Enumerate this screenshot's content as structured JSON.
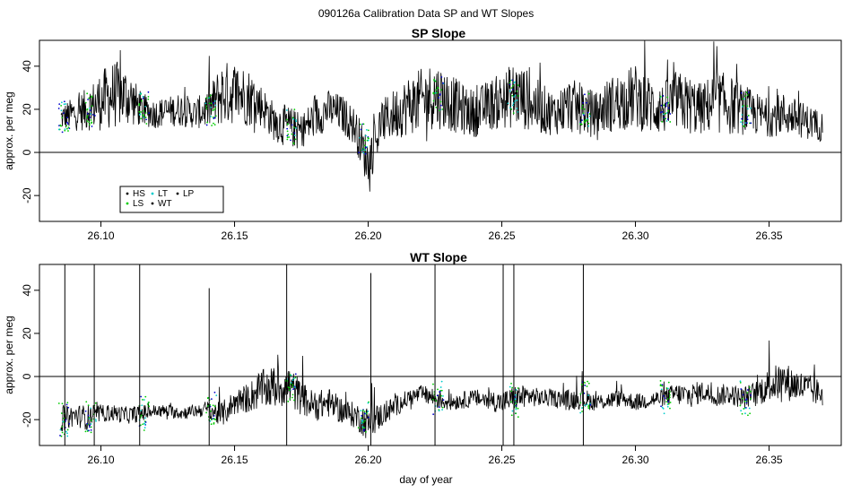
{
  "figure": {
    "title": "090126a   Calibration Data SP and WT Slopes",
    "xlabel": "day of year"
  },
  "chart_data": [
    {
      "type": "line",
      "title": "SP Slope",
      "ylabel": "approx. per meg",
      "xlim": [
        26.077,
        26.377
      ],
      "ylim": [
        -32,
        52
      ],
      "xticks": [
        26.1,
        26.15,
        26.2,
        26.25,
        26.3,
        26.35
      ],
      "xtick_labels": [
        "26.10",
        "26.15",
        "26.20",
        "26.25",
        "26.30",
        "26.35"
      ],
      "yticks": [
        -20,
        0,
        20,
        40
      ],
      "ytick_labels": [
        "-20",
        "0",
        "20",
        "40"
      ],
      "hline": 0,
      "legend": {
        "placement": "bottom-left",
        "entries": [
          {
            "label": "HS",
            "color": "#000000"
          },
          {
            "label": "LT",
            "color": "#00cccc"
          },
          {
            "label": "LP",
            "color": "#000000"
          },
          {
            "label": "LS",
            "color": "#00cc00"
          },
          {
            "label": "WT",
            "color": "#000000"
          }
        ]
      },
      "series": [
        {
          "name": "",
          "color": "#000000",
          "x": [
            26.085,
            26.09,
            26.095,
            26.1,
            26.105,
            26.11,
            26.115,
            26.12,
            26.125,
            26.13,
            26.135,
            26.14,
            26.145,
            26.15,
            26.155,
            26.16,
            26.165,
            26.17,
            26.175,
            26.18,
            26.185,
            26.19,
            26.195,
            26.2,
            26.205,
            26.21,
            26.215,
            26.22,
            26.225,
            26.23,
            26.235,
            26.24,
            26.245,
            26.25,
            26.255,
            26.26,
            26.265,
            26.27,
            26.275,
            26.28,
            26.285,
            26.29,
            26.295,
            26.3,
            26.305,
            26.31,
            26.315,
            26.32,
            26.325,
            26.33,
            26.335,
            26.34,
            26.345,
            26.35,
            26.355,
            26.36,
            26.365,
            26.37
          ],
          "y": [
            16,
            18,
            20,
            24,
            27,
            26,
            20,
            18,
            19,
            20,
            18,
            20,
            27,
            28,
            26,
            22,
            14,
            12,
            10,
            16,
            20,
            18,
            12,
            -5,
            14,
            18,
            22,
            24,
            27,
            24,
            20,
            18,
            22,
            24,
            27,
            24,
            20,
            18,
            22,
            20,
            18,
            22,
            24,
            26,
            22,
            20,
            24,
            22,
            20,
            24,
            22,
            20,
            18,
            16,
            18,
            16,
            14,
            12
          ],
          "spread": [
            6,
            8,
            10,
            14,
            16,
            14,
            8,
            7,
            7,
            8,
            7,
            9,
            15,
            15,
            14,
            10,
            9,
            10,
            8,
            10,
            9,
            9,
            9,
            12,
            10,
            12,
            14,
            15,
            16,
            14,
            12,
            11,
            12,
            13,
            16,
            14,
            12,
            10,
            13,
            12,
            10,
            13,
            14,
            15,
            14,
            12,
            14,
            14,
            12,
            15,
            14,
            12,
            10,
            9,
            10,
            9,
            8,
            7
          ]
        }
      ],
      "calibration_bursts": [
        26.085,
        26.095,
        26.115,
        26.14,
        26.17,
        26.197,
        26.225,
        26.253,
        26.28,
        26.31,
        26.34
      ]
    },
    {
      "type": "line",
      "title": "WT Slope",
      "ylabel": "approx. per meg",
      "xlim": [
        26.077,
        26.377
      ],
      "ylim": [
        -32,
        52
      ],
      "xticks": [
        26.1,
        26.15,
        26.2,
        26.25,
        26.3,
        26.35
      ],
      "xtick_labels": [
        "26.10",
        "26.15",
        "26.20",
        "26.25",
        "26.30",
        "26.35"
      ],
      "yticks": [
        -20,
        0,
        20,
        40
      ],
      "ytick_labels": [
        "-20",
        "0",
        "20",
        "40"
      ],
      "hline": 0,
      "series": [
        {
          "name": "",
          "color": "#000000",
          "x": [
            26.085,
            26.09,
            26.095,
            26.1,
            26.105,
            26.11,
            26.115,
            26.12,
            26.125,
            26.13,
            26.135,
            26.14,
            26.145,
            26.15,
            26.155,
            26.16,
            26.165,
            26.17,
            26.175,
            26.18,
            26.185,
            26.19,
            26.195,
            26.2,
            26.205,
            26.21,
            26.215,
            26.22,
            26.225,
            26.23,
            26.235,
            26.24,
            26.245,
            26.25,
            26.255,
            26.26,
            26.265,
            26.27,
            26.275,
            26.28,
            26.285,
            26.29,
            26.295,
            26.3,
            26.305,
            26.31,
            26.315,
            26.32,
            26.325,
            26.33,
            26.335,
            26.34,
            26.345,
            26.35,
            26.355,
            26.36,
            26.365,
            26.37
          ],
          "y": [
            -20,
            -18,
            -19,
            -17,
            -17,
            -18,
            -17,
            -16,
            -16,
            -17,
            -16,
            -15,
            -18,
            -12,
            -10,
            -6,
            -5,
            -4,
            -10,
            -14,
            -12,
            -16,
            -18,
            -22,
            -18,
            -14,
            -10,
            -8,
            -10,
            -12,
            -11,
            -10,
            -11,
            -12,
            -10,
            -9,
            -10,
            -10,
            -11,
            -10,
            -12,
            -11,
            -10,
            -12,
            -11,
            -10,
            -8,
            -9,
            -7,
            -9,
            -8,
            -10,
            -8,
            -4,
            -2,
            -4,
            -6,
            -8
          ],
          "spread": [
            6,
            5,
            6,
            4,
            4,
            4,
            4,
            3,
            3,
            3,
            3,
            4,
            6,
            6,
            7,
            9,
            10,
            10,
            8,
            7,
            7,
            6,
            6,
            8,
            6,
            5,
            4,
            4,
            5,
            4,
            4,
            4,
            5,
            5,
            6,
            5,
            4,
            4,
            5,
            5,
            4,
            4,
            4,
            4,
            4,
            4,
            5,
            6,
            5,
            5,
            5,
            5,
            6,
            8,
            9,
            8,
            7,
            6
          ]
        }
      ],
      "spikes": [
        {
          "x": 26.0865,
          "y_top": 52
        },
        {
          "x": 26.0975,
          "y_top": 52
        },
        {
          "x": 26.1145,
          "y_top": 52
        },
        {
          "x": 26.1405,
          "y_top": 41
        },
        {
          "x": 26.1695,
          "y_top": 52
        },
        {
          "x": 26.201,
          "y_top": 48
        },
        {
          "x": 26.225,
          "y_top": 52
        },
        {
          "x": 26.2505,
          "y_top": 52
        },
        {
          "x": 26.2545,
          "y_top": 52
        },
        {
          "x": 26.2805,
          "y_top": 52
        }
      ],
      "calibration_bursts": [
        26.085,
        26.095,
        26.115,
        26.14,
        26.17,
        26.197,
        26.225,
        26.253,
        26.28,
        26.31,
        26.34
      ]
    }
  ]
}
